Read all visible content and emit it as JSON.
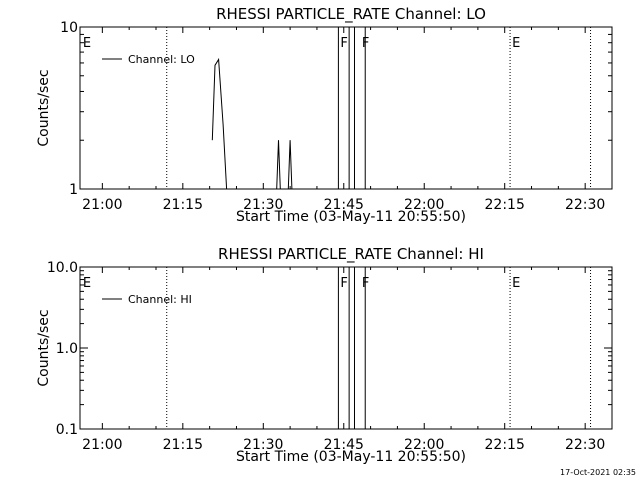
{
  "chart_data": [
    {
      "type": "line",
      "title": "RHESSI PARTICLE_RATE Channel: LO",
      "xlabel": "Start Time (03-May-11 20:55:50)",
      "ylabel": "Counts/sec",
      "y_scale": "log",
      "ylim": [
        1,
        10
      ],
      "xlim": [
        "20:55:50",
        "22:35:00"
      ],
      "x_ticks": [
        "21:00",
        "21:15",
        "21:30",
        "21:45",
        "22:00",
        "22:15",
        "22:30"
      ],
      "y_ticks": [
        "1",
        "10"
      ],
      "legend": "Channel: LO",
      "legend_position": "top-left",
      "markers": [
        {
          "label": "E",
          "time": "20:56"
        },
        {
          "label": "F",
          "time": "21:44"
        },
        {
          "label": "F",
          "time": "21:48"
        },
        {
          "label": "E",
          "time": "22:16"
        }
      ],
      "eclipse_lines": [
        "21:12",
        "22:16",
        "22:31"
      ],
      "flag_intervals": [
        [
          "21:44",
          "21:46"
        ],
        [
          "21:47",
          "21:49"
        ]
      ],
      "series": [
        {
          "points": [
            [
              "21:20:30",
              2.0
            ],
            [
              "21:21:00",
              5.8
            ],
            [
              "21:21:40",
              6.3
            ],
            [
              "21:22:30",
              2.5
            ],
            [
              "21:23:10",
              1.0
            ],
            [
              "21:32:30",
              1.0
            ],
            [
              "21:32:50",
              2.0
            ],
            [
              "21:33:10",
              1.0
            ],
            [
              "21:34:40",
              1.0
            ],
            [
              "21:35:00",
              2.0
            ],
            [
              "21:35:20",
              1.0
            ]
          ]
        }
      ]
    },
    {
      "type": "line",
      "title": "RHESSI PARTICLE_RATE Channel: HI",
      "xlabel": "Start Time (03-May-11 20:55:50)",
      "ylabel": "Counts/sec",
      "y_scale": "log",
      "ylim": [
        0.1,
        10
      ],
      "xlim": [
        "20:55:50",
        "22:35:00"
      ],
      "x_ticks": [
        "21:00",
        "21:15",
        "21:30",
        "21:45",
        "22:00",
        "22:15",
        "22:30"
      ],
      "y_ticks": [
        "0.1",
        "1.0",
        "10.0"
      ],
      "legend": "Channel: HI",
      "legend_position": "top-left",
      "markers": [
        {
          "label": "E",
          "time": "20:56"
        },
        {
          "label": "F",
          "time": "21:44"
        },
        {
          "label": "F",
          "time": "21:48"
        },
        {
          "label": "E",
          "time": "22:16"
        }
      ],
      "eclipse_lines": [
        "21:12",
        "22:16",
        "22:31"
      ],
      "flag_intervals": [
        [
          "21:44",
          "21:46"
        ],
        [
          "21:47",
          "21:49"
        ]
      ],
      "series": []
    }
  ],
  "footer": {
    "timestamp": "17-Oct-2021 02:35"
  }
}
